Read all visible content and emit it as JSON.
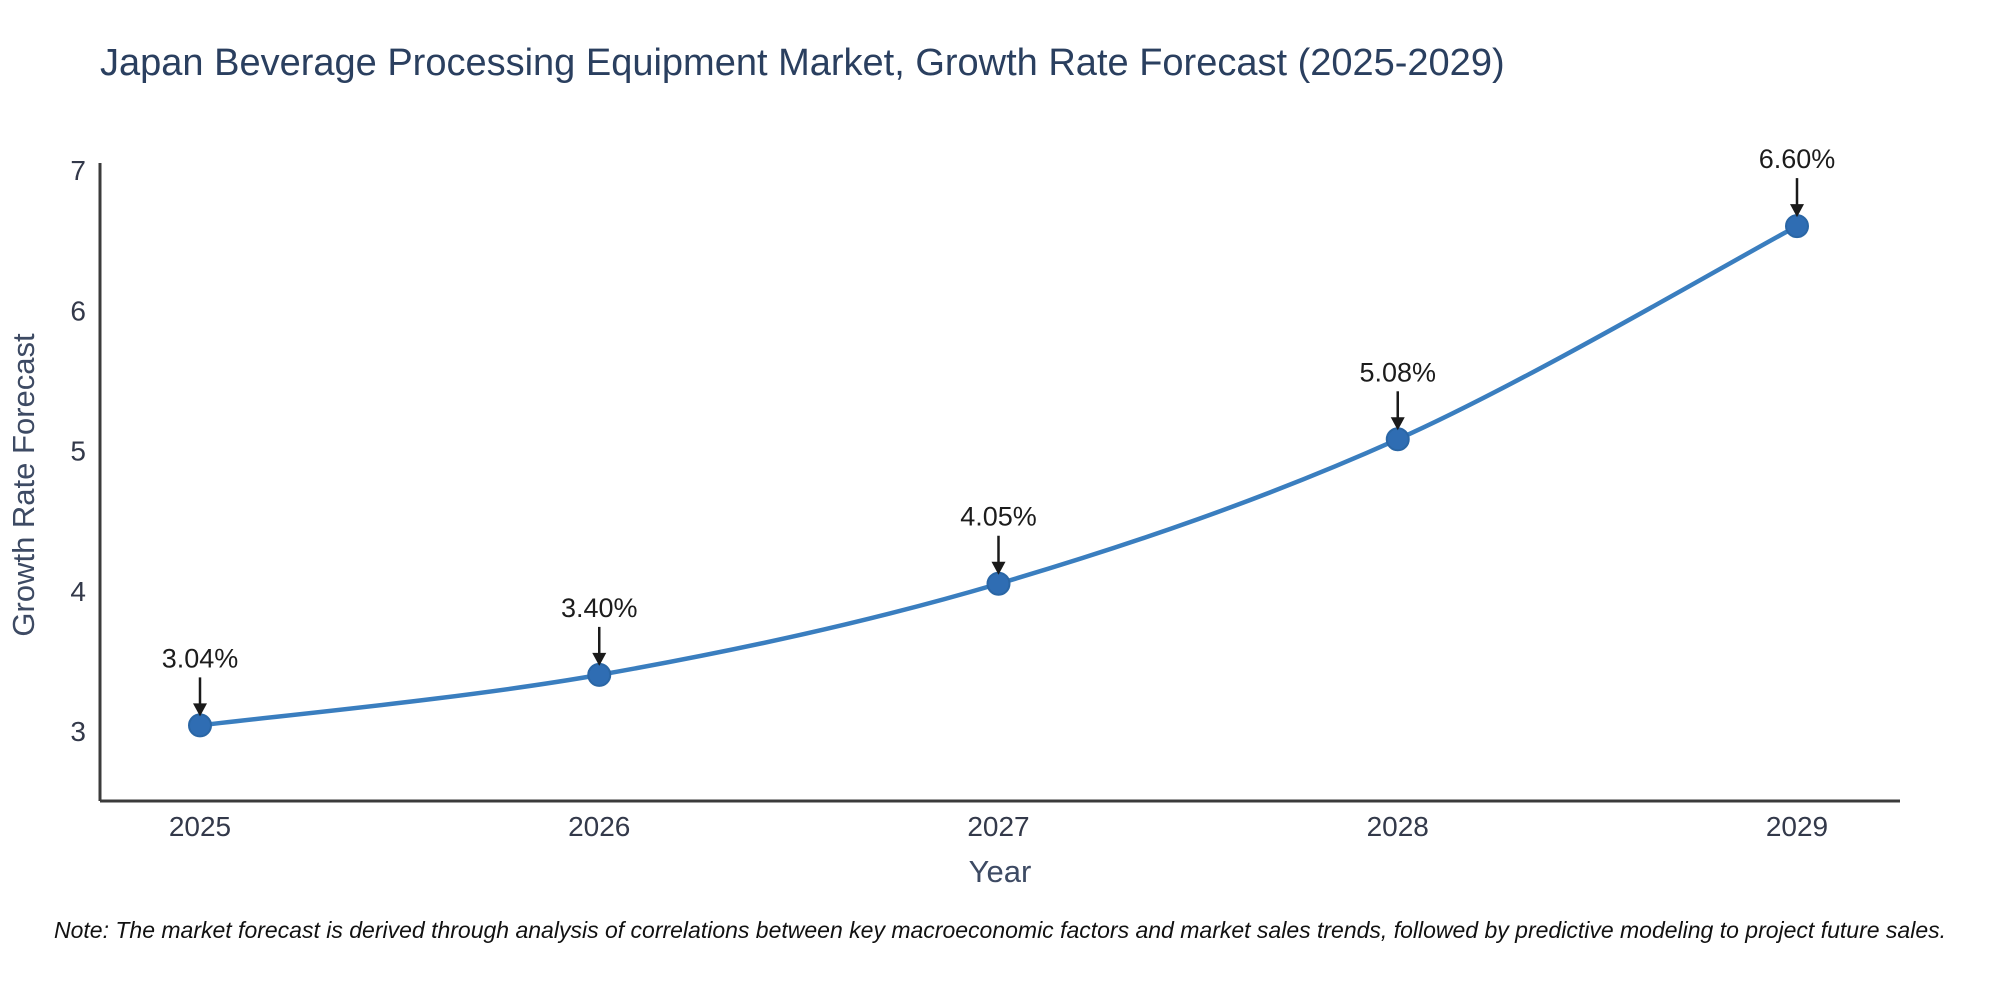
{
  "title": "Japan Beverage Processing Equipment Market, Growth Rate Forecast (2025-2029)",
  "note": "Note: The market forecast is derived through analysis of correlations between key macroeconomic factors and market sales trends, followed by predictive modeling to project future sales.",
  "chart_data": {
    "type": "line",
    "title": "Japan Beverage Processing Equipment Market, Growth Rate Forecast (2025-2029)",
    "x": [
      "2025",
      "2026",
      "2027",
      "2028",
      "2029"
    ],
    "values": [
      3.04,
      3.4,
      4.05,
      5.08,
      6.6
    ],
    "point_labels": [
      "3.04%",
      "3.40%",
      "4.05%",
      "5.08%",
      "6.60%"
    ],
    "xlabel": "Year",
    "ylabel": "Growth Rate Forecast",
    "yticks": [
      3,
      4,
      5,
      6,
      7
    ],
    "ylim": [
      2.5,
      7.05
    ],
    "grid": false,
    "legend": "none",
    "line_color": "#3a7ebf",
    "marker_color": "#2f6db3",
    "marker_edge_color": "#2a66a5",
    "axis_color": "#3b3b3b",
    "annotation_arrow_color": "#1a1a1a"
  }
}
